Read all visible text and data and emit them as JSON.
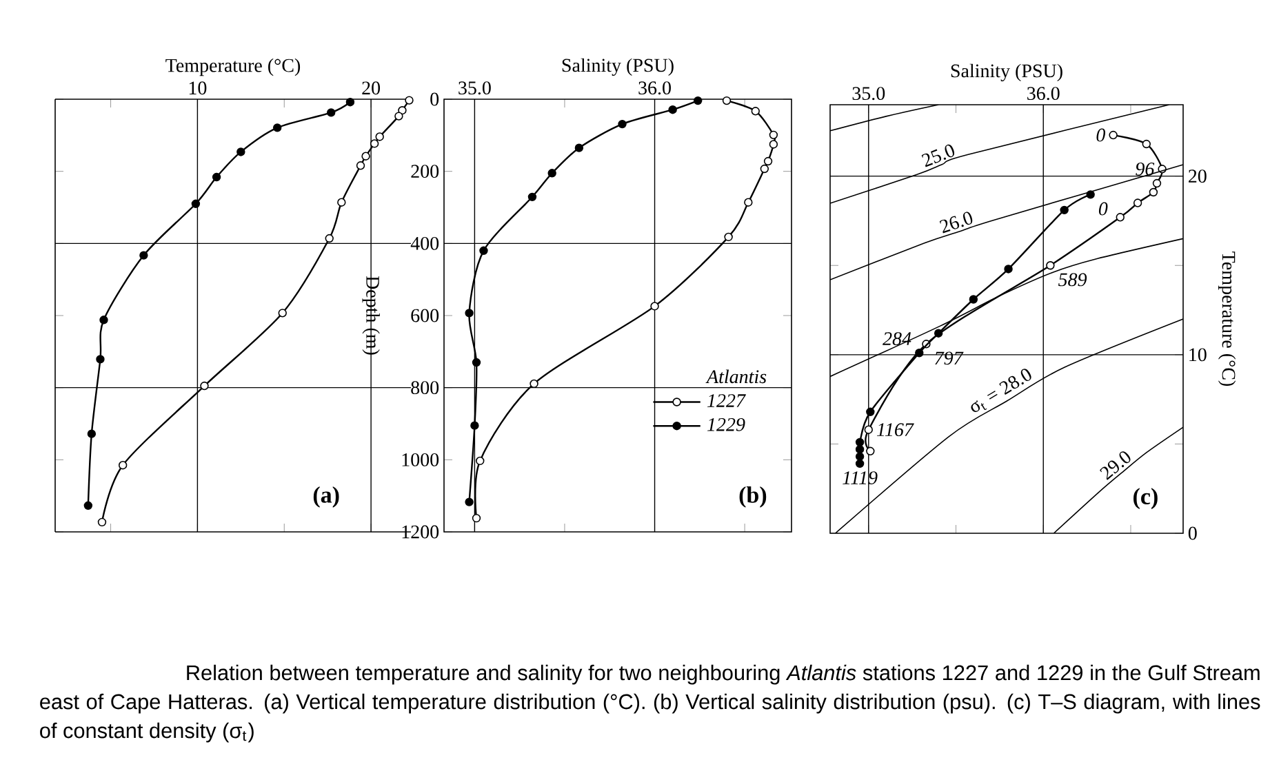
{
  "chart_data": [
    {
      "type": "line",
      "xlabel": "Temperature (°C)",
      "xlim": [
        1.8,
        22.3
      ],
      "xticks": [
        {
          "value": 5,
          "label": null
        },
        10,
        {
          "value": 15,
          "label": null
        },
        20
      ],
      "ylim": [
        1200,
        0
      ],
      "yticks": [
        {
          "value": 0,
          "label": null
        },
        {
          "value": 200,
          "label": null
        },
        {
          "value": 400,
          "label": null
        },
        {
          "value": 600,
          "label": null
        },
        {
          "value": 800,
          "label": null
        },
        {
          "value": 1000,
          "label": null
        },
        {
          "value": 1200,
          "label": null
        }
      ],
      "tick_labels": "x",
      "marker": "circle",
      "ref_lines": [
        {
          "axis": "x",
          "value": 10
        },
        {
          "axis": "x",
          "value": 20
        },
        {
          "axis": "y",
          "value": 400
        },
        {
          "axis": "y",
          "value": 800
        }
      ],
      "annotations": [
        "(a)"
      ],
      "series": [
        {
          "color": "#ffffff",
          "x": [
            22.2,
            21.8,
            21.6,
            20.5,
            20.2,
            19.7,
            19.4,
            18.3,
            17.6,
            14.9,
            10.4,
            5.7,
            4.5
          ],
          "values": [
            3,
            31,
            47,
            104,
            123,
            158,
            184,
            286,
            386,
            593,
            795,
            1015,
            1173
          ]
        },
        {
          "color": "#000000",
          "x": [
            18.8,
            17.7,
            14.6,
            12.5,
            11.1,
            9.9,
            6.9,
            4.6,
            4.4,
            3.9,
            3.7
          ],
          "values": [
            8,
            37,
            79,
            146,
            216,
            290,
            433,
            612,
            721,
            928,
            1127
          ]
        }
      ]
    },
    {
      "type": "line",
      "xlabel": "Salinity (PSU)",
      "ylabel": "Depth (m)",
      "xlim": [
        34.83,
        36.76
      ],
      "xticks": [
        {
          "value": 35,
          "label": "35.0"
        },
        {
          "value": 35.5,
          "label": null
        },
        {
          "value": 36,
          "label": "36.0"
        },
        {
          "value": 36.5,
          "label": null
        }
      ],
      "ylim": [
        1200,
        0
      ],
      "yticks": [
        0,
        200,
        400,
        600,
        800,
        1000,
        1200
      ],
      "marker": "circle",
      "legend": "bottom right",
      "legend_title": "Atlantis",
      "ref_lines": [
        {
          "axis": "x",
          "value": 35
        },
        {
          "axis": "x",
          "value": 36
        },
        {
          "axis": "y",
          "value": 400
        },
        {
          "axis": "y",
          "value": 800
        }
      ],
      "annotations": [
        "(b)"
      ],
      "series": [
        {
          "name": "1227",
          "color": "#ffffff",
          "x": [
            36.4,
            36.56,
            36.66,
            36.66,
            36.63,
            36.61,
            36.52,
            36.41,
            36.0,
            35.33,
            35.03,
            35.01
          ],
          "values": [
            4,
            33,
            99,
            125,
            172,
            193,
            286,
            382,
            574,
            789,
            1003,
            1162
          ]
        },
        {
          "name": "1229",
          "color": "#000000",
          "x": [
            36.24,
            36.1,
            35.82,
            35.58,
            35.43,
            35.32,
            35.05,
            34.97,
            35.01,
            35.0,
            34.97
          ],
          "values": [
            4,
            29,
            69,
            135,
            205,
            271,
            420,
            593,
            730,
            905,
            1117
          ]
        }
      ]
    },
    {
      "type": "line",
      "xlabel": "Salinity (PSU)",
      "ylabel": "Temperature (°C)",
      "xlim": [
        34.78,
        36.8
      ],
      "xticks": [
        {
          "value": 35,
          "label": "35.0"
        },
        {
          "value": 35.5,
          "label": null
        },
        {
          "value": 36,
          "label": "36.0"
        },
        {
          "value": 36.5,
          "label": null
        }
      ],
      "ylim": [
        0,
        24
      ],
      "yticks": [
        0,
        {
          "value": 5,
          "label": null
        },
        10,
        {
          "value": 15,
          "label": null
        },
        20
      ],
      "marker": "circle",
      "ref_lines": [
        {
          "axis": "x",
          "value": 35
        },
        {
          "axis": "x",
          "value": 36
        },
        {
          "axis": "y",
          "value": 10
        },
        {
          "axis": "y",
          "value": 20
        }
      ],
      "annotations": [
        "(c)",
        "Relation between temperature and salinity for two neighbouring *Atlantis* stations 1227 and 1229 in the Gulf Stream east of Cape Hatteras. (a) Vertical temperature distribution (°C). (b) Vertical salinity distribution (psu). (c) T–S diagram, with lines of constant density (σ$_{t}$)",
        {
          "text": "0",
          "x": 36.4,
          "y": 22.3
        },
        {
          "text": "96",
          "x": 36.68,
          "y": 20.4
        },
        {
          "text": "0",
          "x": 36.27,
          "y": 18.97
        },
        {
          "text": "589",
          "x": 36.04,
          "y": 15.0
        },
        {
          "text": "797",
          "x": 35.33,
          "y": 10.6
        },
        {
          "text": "284",
          "x": 35.29,
          "y": 10.1
        },
        {
          "text": "1167",
          "x": 35.0,
          "y": 5.8
        },
        {
          "text": "1119",
          "x": 34.95,
          "y": 3.9
        },
        {
          "text": "25.0",
          "x": 35.42,
          "y": 20.65
        },
        {
          "text": "26.0",
          "x": 35.52,
          "y": 16.9
        },
        {
          "text": "σ$_{t}$ = 28.0",
          "x": 35.79,
          "y": 7.4
        },
        {
          "text": "29.0",
          "x": 36.45,
          "y": 3.4
        }
      ],
      "series": [
        {
          "color": "#ffffff",
          "x": [
            36.4,
            36.59,
            36.68,
            36.65,
            36.63,
            36.54,
            36.44,
            36.04,
            35.33,
            35.0,
            35.01
          ],
          "values": [
            22.3,
            21.8,
            20.4,
            19.6,
            19.1,
            18.5,
            17.7,
            15.0,
            10.6,
            5.8,
            4.6
          ]
        },
        {
          "color": "#000000",
          "x": [
            36.27,
            36.12,
            35.8,
            35.6,
            35.4,
            35.29,
            35.01,
            34.95,
            34.95,
            34.95,
            34.95
          ],
          "values": [
            18.97,
            18.1,
            14.8,
            13.1,
            11.2,
            10.1,
            6.8,
            5.1,
            4.7,
            4.3,
            3.9
          ]
        },
        {
          "color": "#000000",
          "marker": "none",
          "x": [
            34.78,
            35.1,
            35.4
          ],
          "values": [
            22.54,
            23.35,
            24.0
          ]
        },
        {
          "color": "#000000",
          "marker": "none",
          "x": [
            34.78,
            35.28,
            35.42,
            35.57,
            36.72
          ],
          "values": [
            18.48,
            20.1,
            20.65,
            21.21,
            24.0
          ]
        },
        {
          "color": "#000000",
          "marker": "none",
          "x": [
            34.78,
            35.32,
            35.52,
            35.72,
            36.8
          ],
          "values": [
            14.2,
            16.25,
            16.9,
            17.55,
            20.64
          ]
        },
        {
          "color": "#000000",
          "marker": "none",
          "x": [
            34.78,
            35.41,
            35.75,
            36.05,
            36.3,
            36.8
          ],
          "values": [
            8.78,
            11.61,
            13.3,
            14.6,
            15.36,
            16.5
          ]
        },
        {
          "color": "#000000",
          "marker": "none",
          "x": [
            34.81,
            35.46,
            35.79,
            36.12,
            36.8
          ],
          "values": [
            0,
            5.42,
            7.4,
            9.29,
            12.0
          ]
        },
        {
          "color": "#000000",
          "marker": "none",
          "x": [
            36.06,
            36.32,
            36.45,
            36.59,
            36.8
          ],
          "values": [
            0,
            2.32,
            3.4,
            4.52,
            5.94
          ]
        }
      ]
    }
  ]
}
